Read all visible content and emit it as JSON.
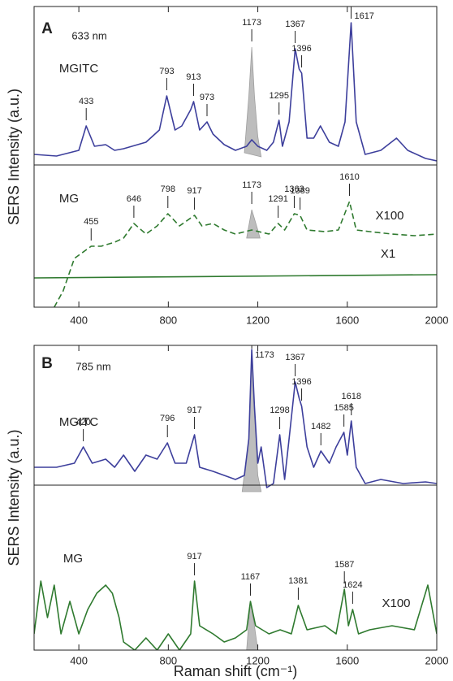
{
  "chart_data": [
    {
      "type": "line",
      "panel": "A",
      "wavelength": "633 nm",
      "y_label": "SERS Intensity (a.u.)",
      "xlim": [
        200,
        2000
      ],
      "xticks": [
        400,
        800,
        1200,
        1600,
        2000
      ],
      "ylim": [
        0,
        370
      ],
      "series": [
        {
          "name": "MGITC",
          "color": "#3d3f9c",
          "dashed": false,
          "x": [
            200,
            300,
            400,
            433,
            470,
            520,
            560,
            600,
            700,
            760,
            793,
            830,
            860,
            900,
            913,
            940,
            973,
            1000,
            1050,
            1100,
            1150,
            1173,
            1200,
            1240,
            1270,
            1295,
            1310,
            1340,
            1367,
            1385,
            1396,
            1420,
            1450,
            1480,
            1520,
            1560,
            1590,
            1617,
            1640,
            1680,
            1750,
            1820,
            1870,
            1950,
            2000
          ],
          "values": [
            188,
            186,
            193,
            223,
            198,
            200,
            193,
            195,
            203,
            218,
            260,
            218,
            223,
            243,
            253,
            218,
            228,
            213,
            200,
            193,
            198,
            206,
            198,
            193,
            203,
            230,
            198,
            228,
            318,
            293,
            288,
            208,
            208,
            223,
            203,
            198,
            228,
            350,
            228,
            188,
            193,
            208,
            193,
            183,
            180
          ],
          "peaks": [
            433,
            793,
            913,
            973,
            1173,
            1295,
            1367,
            1396,
            1617
          ],
          "shaded": {
            "x": [
              1140,
              1160,
              1173,
              1185,
              1200,
              1215
            ],
            "values": [
              190,
              260,
              320,
              260,
              210,
              185
            ]
          }
        },
        {
          "name": "MG",
          "color": "#2f7a2f",
          "dashed": true,
          "scale": "X100",
          "x": [
            290,
            330,
            380,
            430,
            455,
            500,
            560,
            600,
            646,
            700,
            750,
            798,
            850,
            917,
            950,
            1000,
            1050,
            1100,
            1173,
            1250,
            1291,
            1320,
            1363,
            1389,
            1420,
            1500,
            1560,
            1610,
            1640,
            1700,
            1800,
            1900,
            2000
          ],
          "values": [
            0,
            20,
            60,
            70,
            75,
            75,
            80,
            85,
            103,
            90,
            100,
            115,
            100,
            113,
            100,
            103,
            95,
            90,
            95,
            90,
            103,
            95,
            115,
            113,
            95,
            93,
            95,
            130,
            95,
            93,
            90,
            88,
            90
          ],
          "peaks": [
            455,
            646,
            798,
            917,
            1173,
            1291,
            1363,
            1389,
            1610
          ],
          "shaded": {
            "x": [
              1150,
              1173,
              1200,
              1210
            ],
            "values": [
              85,
              120,
              95,
              85
            ]
          }
        },
        {
          "name": "X1",
          "color": "#2f7a2f",
          "dashed": false,
          "x": [
            200,
            2000
          ],
          "values": [
            36,
            40
          ]
        }
      ]
    },
    {
      "type": "line",
      "panel": "B",
      "wavelength": "785 nm",
      "y_label": "SERS Intensity (a.u.)",
      "x_label": "Raman shift (cm⁻¹)",
      "xlim": [
        200,
        2000
      ],
      "xticks": [
        400,
        800,
        1200,
        1600,
        2000
      ],
      "ylim": [
        0,
        375
      ],
      "series": [
        {
          "name": "MGITC",
          "color": "#3d3f9c",
          "dashed": false,
          "x": [
            200,
            300,
            380,
            420,
            460,
            520,
            560,
            600,
            650,
            700,
            750,
            796,
            830,
            880,
            917,
            940,
            1000,
            1050,
            1100,
            1140,
            1160,
            1173,
            1185,
            1200,
            1215,
            1240,
            1270,
            1298,
            1320,
            1340,
            1367,
            1385,
            1396,
            1420,
            1450,
            1482,
            1520,
            1550,
            1585,
            1600,
            1618,
            1640,
            1680,
            1750,
            1850,
            1950,
            2000
          ],
          "values": [
            225,
            225,
            230,
            250,
            230,
            235,
            225,
            240,
            220,
            240,
            235,
            255,
            230,
            230,
            265,
            225,
            220,
            215,
            210,
            215,
            260,
            370,
            300,
            230,
            250,
            200,
            205,
            265,
            210,
            260,
            330,
            310,
            300,
            250,
            225,
            245,
            230,
            250,
            268,
            240,
            282,
            225,
            205,
            210,
            205,
            207,
            205
          ],
          "peaks": [
            420,
            796,
            917,
            1173,
            1298,
            1367,
            1396,
            1482,
            1585,
            1618
          ],
          "shaded": {
            "x": [
              1130,
              1160,
              1173,
              1185,
              1200,
              1215
            ],
            "values": [
              195,
              260,
              370,
              290,
              215,
              195
            ]
          }
        },
        {
          "name": "MG",
          "color": "#2f7a2f",
          "dashed": false,
          "scale": "X100",
          "x": [
            200,
            230,
            260,
            290,
            320,
            360,
            400,
            440,
            480,
            520,
            550,
            580,
            600,
            650,
            700,
            750,
            800,
            850,
            900,
            917,
            940,
            1000,
            1050,
            1100,
            1150,
            1167,
            1190,
            1250,
            1300,
            1350,
            1381,
            1420,
            1500,
            1550,
            1587,
            1605,
            1624,
            1650,
            1700,
            1800,
            1900,
            1960,
            2000
          ],
          "values": [
            20,
            85,
            40,
            80,
            20,
            60,
            20,
            50,
            70,
            80,
            70,
            40,
            10,
            0,
            15,
            0,
            20,
            0,
            20,
            85,
            30,
            20,
            10,
            15,
            25,
            60,
            30,
            20,
            25,
            20,
            55,
            25,
            30,
            20,
            75,
            30,
            50,
            20,
            25,
            30,
            25,
            80,
            20
          ],
          "peaks": [
            917,
            1167,
            1381,
            1587,
            1624
          ],
          "shaded": {
            "x": [
              1150,
              1167,
              1185,
              1200
            ],
            "values": [
              0,
              60,
              30,
              0
            ]
          }
        }
      ]
    }
  ]
}
